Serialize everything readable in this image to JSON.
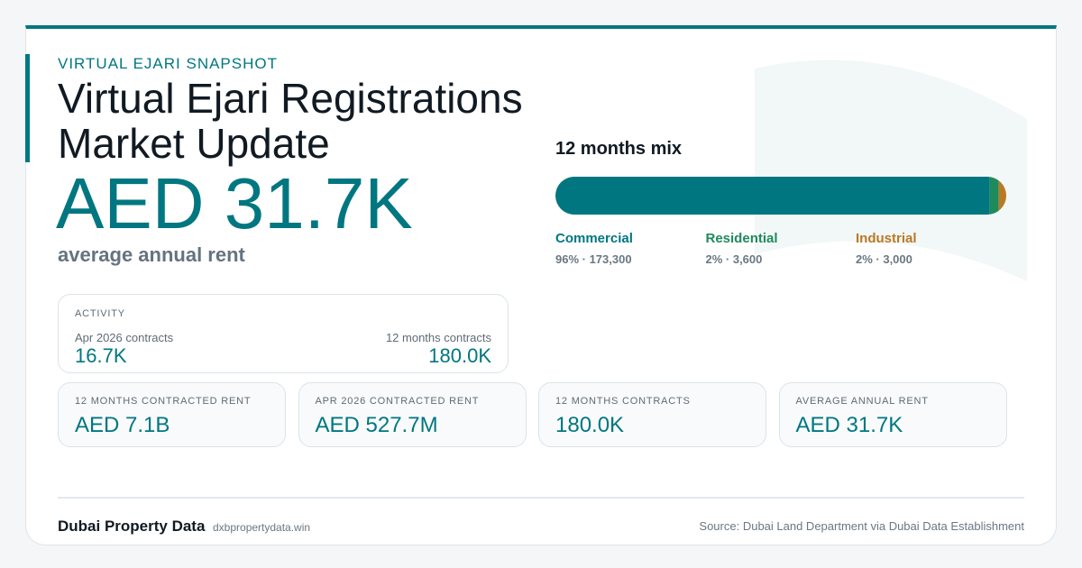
{
  "header": {
    "eyebrow": "VIRTUAL EJARI SNAPSHOT",
    "title_lines": [
      "Virtual Ejari Registrations",
      "Market Update"
    ],
    "headline": "AED 31.7K",
    "headline_caption": "average annual rent"
  },
  "mix": {
    "title": "12 months mix",
    "segments": [
      {
        "name": "Commercial",
        "color": "#007780",
        "value": 173300,
        "value_label": "96% · 173,300"
      },
      {
        "name": "Residential",
        "color": "#1f8a5b",
        "value": 3600,
        "value_label": "2% · 3,600"
      },
      {
        "name": "Industrial",
        "color": "#b87a24",
        "value": 3000,
        "value_label": "2% · 3,000"
      }
    ]
  },
  "activity": {
    "label": "ACTIVITY",
    "items": [
      {
        "label": "Apr 2026 contracts",
        "value": "16.7K"
      },
      {
        "label": "12 months contracts",
        "value": "180.0K"
      }
    ]
  },
  "stats": [
    {
      "label": "12 MONTHS CONTRACTED RENT",
      "value": "AED 7.1B"
    },
    {
      "label": "APR 2026 CONTRACTED RENT",
      "value": "AED 527.7M"
    },
    {
      "label": "12 MONTHS CONTRACTS",
      "value": "180.0K"
    },
    {
      "label": "AVERAGE ANNUAL RENT",
      "value": "AED 31.7K"
    }
  ],
  "footer": {
    "brand": "Dubai Property Data",
    "site": "dxbpropertydata.win",
    "source": "Source: Dubai Land Department via Dubai Data Establishment"
  }
}
